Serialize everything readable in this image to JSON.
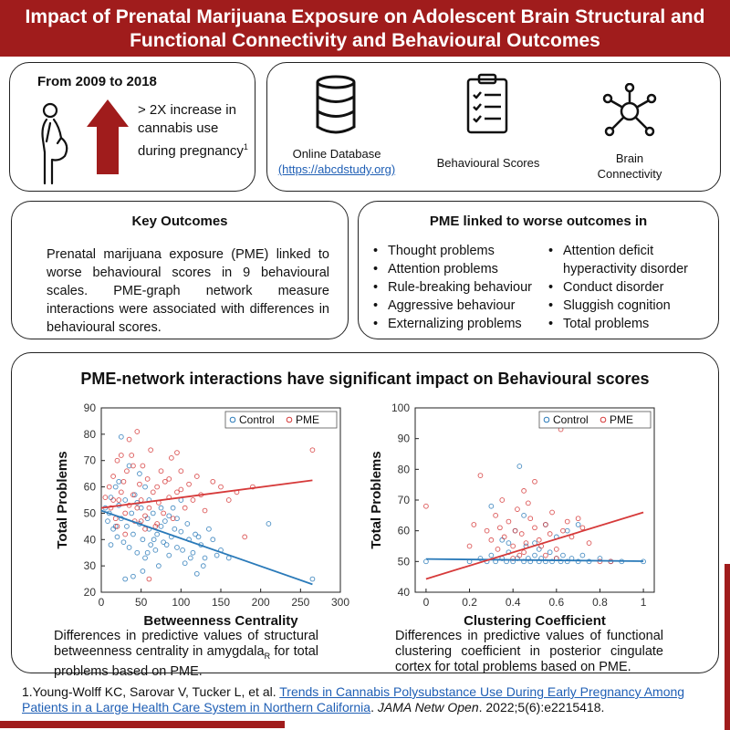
{
  "header": {
    "title": "Impact of Prenatal Marijuana Exposure on Adolescent Brain Structural and Functional Connectivity and Behavioural Outcomes"
  },
  "trend": {
    "years": "From 2009 to 2018",
    "stat_prefix": "> 2X increase in cannabis use during pregnancy",
    "footnote_mark": "1"
  },
  "sources": {
    "database_label": "Online Database",
    "database_link": "(https://abcdstudy.org)",
    "behaviour_label": "Behavioural Scores",
    "brain_label": "Brain Connectivity"
  },
  "key_outcomes": {
    "title": "Key Outcomes",
    "text": "Prenatal marijuana exposure (PME) linked to worse behavioural scores in 9 behavioural scales. PME-graph network measure interactions were associated with differences in behavioural scores."
  },
  "pme_linked": {
    "title": "PME linked to worse outcomes in",
    "col1": [
      "Thought problems",
      "Attention problems",
      "Rule-breaking behaviour",
      "Aggressive behaviour",
      "Externalizing problems"
    ],
    "col2": [
      "Attention deficit hyperactivity disorder",
      "Conduct disorder",
      "Sluggish cognition",
      "Total problems"
    ]
  },
  "interactions": {
    "title": "PME-network interactions have significant impact on Behavioural scores"
  },
  "captions": {
    "left": "Differences in predictive values of structural betweenness centrality in amygdala",
    "left_sub": "R",
    "left_tail": " for total problems based on PME.",
    "right": "Differences in predictive values of functional clustering coefficient in posterior cingulate cortex for total problems based on PME."
  },
  "reference": {
    "prefix": "1.Young-Wolff KC, Sarovar V, Tucker L, et al. ",
    "link": "Trends in Cannabis Polysubstance Use During Early Pregnancy Among Patients in a Large Health Care System in Northern California",
    "journal": "JAMA Netw Open",
    "tail": ". 2022;5(6):e2215418."
  },
  "colors": {
    "brand": "#a01c1c",
    "control": "#2a7ab9",
    "pme": "#d63a3a"
  },
  "chart_data": [
    {
      "type": "scatter",
      "title": "",
      "xlabel": "Betweenness Centrality",
      "ylabel": "Total Problems",
      "xlim": [
        0,
        300
      ],
      "ylim": [
        20,
        90
      ],
      "xticks": [
        0,
        50,
        100,
        150,
        200,
        250,
        300
      ],
      "yticks": [
        20,
        30,
        40,
        50,
        60,
        70,
        80,
        90
      ],
      "legend": "top-right",
      "series": [
        {
          "name": "Control",
          "color": "#2a7ab9",
          "points": [
            [
              5,
              52
            ],
            [
              8,
              47
            ],
            [
              12,
              56
            ],
            [
              15,
              44
            ],
            [
              18,
              60
            ],
            [
              20,
              41
            ],
            [
              22,
              53
            ],
            [
              25,
              48
            ],
            [
              28,
              39
            ],
            [
              30,
              55
            ],
            [
              32,
              45
            ],
            [
              35,
              37
            ],
            [
              38,
              50
            ],
            [
              40,
              42
            ],
            [
              42,
              57
            ],
            [
              45,
              35
            ],
            [
              48,
              46
            ],
            [
              50,
              52
            ],
            [
              52,
              40
            ],
            [
              55,
              33
            ],
            [
              58,
              48
            ],
            [
              60,
              44
            ],
            [
              62,
              38
            ],
            [
              65,
              50
            ],
            [
              68,
              36
            ],
            [
              70,
              42
            ],
            [
              72,
              30
            ],
            [
              75,
              45
            ],
            [
              78,
              39
            ],
            [
              80,
              47
            ],
            [
              85,
              34
            ],
            [
              88,
              41
            ],
            [
              90,
              52
            ],
            [
              95,
              37
            ],
            [
              100,
              43
            ],
            [
              105,
              31
            ],
            [
              110,
              40
            ],
            [
              115,
              35
            ],
            [
              120,
              27
            ],
            [
              125,
              38
            ],
            [
              130,
              33
            ],
            [
              140,
              40
            ],
            [
              150,
              36
            ],
            [
              160,
              33
            ],
            [
              210,
              46
            ],
            [
              265,
              25
            ],
            [
              30,
              25
            ],
            [
              40,
              26
            ],
            [
              25,
              79
            ],
            [
              48,
              65
            ],
            [
              35,
              68
            ],
            [
              22,
              62
            ],
            [
              18,
              45
            ],
            [
              12,
              38
            ],
            [
              10,
              50
            ],
            [
              45,
              54
            ],
            [
              55,
              60
            ],
            [
              60,
              55
            ],
            [
              75,
              52
            ],
            [
              85,
              49
            ],
            [
              95,
              48
            ],
            [
              100,
              55
            ],
            [
              108,
              46
            ],
            [
              118,
              42
            ],
            [
              128,
              30
            ],
            [
              135,
              44
            ],
            [
              145,
              34
            ],
            [
              52,
              28
            ],
            [
              58,
              35
            ],
            [
              66,
              40
            ],
            [
              82,
              38
            ],
            [
              92,
              44
            ],
            [
              102,
              36
            ],
            [
              112,
              33
            ],
            [
              122,
              41
            ]
          ],
          "fit": [
            [
              0,
              51
            ],
            [
              265,
              23
            ]
          ]
        },
        {
          "name": "PME",
          "color": "#d63a3a",
          "points": [
            [
              5,
              56
            ],
            [
              10,
              60
            ],
            [
              12,
              52
            ],
            [
              15,
              64
            ],
            [
              18,
              48
            ],
            [
              20,
              70
            ],
            [
              22,
              55
            ],
            [
              25,
              58
            ],
            [
              28,
              62
            ],
            [
              30,
              50
            ],
            [
              32,
              66
            ],
            [
              35,
              53
            ],
            [
              38,
              72
            ],
            [
              40,
              57
            ],
            [
              42,
              47
            ],
            [
              45,
              81
            ],
            [
              48,
              61
            ],
            [
              50,
              55
            ],
            [
              52,
              68
            ],
            [
              55,
              49
            ],
            [
              58,
              63
            ],
            [
              60,
              52
            ],
            [
              62,
              74
            ],
            [
              65,
              58
            ],
            [
              68,
              45
            ],
            [
              70,
              60
            ],
            [
              72,
              54
            ],
            [
              75,
              66
            ],
            [
              78,
              50
            ],
            [
              80,
              62
            ],
            [
              85,
              56
            ],
            [
              88,
              71
            ],
            [
              90,
              48
            ],
            [
              95,
              73
            ],
            [
              100,
              59
            ],
            [
              105,
              52
            ],
            [
              110,
              61
            ],
            [
              115,
              55
            ],
            [
              120,
              64
            ],
            [
              125,
              57
            ],
            [
              130,
              51
            ],
            [
              140,
              62
            ],
            [
              150,
              60
            ],
            [
              160,
              55
            ],
            [
              170,
              58
            ],
            [
              180,
              41
            ],
            [
              190,
              60
            ],
            [
              265,
              74
            ],
            [
              60,
              25
            ],
            [
              20,
              45
            ],
            [
              30,
              42
            ],
            [
              15,
              55
            ],
            [
              25,
              72
            ],
            [
              35,
              78
            ],
            [
              40,
              68
            ],
            [
              55,
              44
            ],
            [
              70,
              46
            ],
            [
              85,
              63
            ],
            [
              95,
              58
            ],
            [
              100,
              66
            ],
            [
              45,
              52
            ],
            [
              50,
              47
            ]
          ],
          "fit": [
            [
              0,
              52
            ],
            [
              265,
              62.5
            ]
          ]
        }
      ]
    },
    {
      "type": "scatter",
      "title": "",
      "xlabel": "Clustering Coefficient",
      "ylabel": "Total Problems",
      "xlim": [
        -0.05,
        1.05
      ],
      "ylim": [
        40,
        100
      ],
      "xticks": [
        0,
        0.2,
        0.4,
        0.6,
        0.8,
        1
      ],
      "yticks": [
        40,
        50,
        60,
        70,
        80,
        90,
        100
      ],
      "legend": "top-right",
      "series": [
        {
          "name": "Control",
          "color": "#2a7ab9",
          "points": [
            [
              0,
              50
            ],
            [
              0.2,
              50
            ],
            [
              0.25,
              51
            ],
            [
              0.28,
              50
            ],
            [
              0.3,
              52
            ],
            [
              0.32,
              50
            ],
            [
              0.35,
              51
            ],
            [
              0.37,
              50
            ],
            [
              0.38,
              53
            ],
            [
              0.4,
              50
            ],
            [
              0.42,
              51
            ],
            [
              0.43,
              81
            ],
            [
              0.45,
              50
            ],
            [
              0.46,
              55
            ],
            [
              0.47,
              51
            ],
            [
              0.48,
              50
            ],
            [
              0.5,
              52
            ],
            [
              0.52,
              50
            ],
            [
              0.53,
              51
            ],
            [
              0.55,
              50
            ],
            [
              0.57,
              53
            ],
            [
              0.58,
              50
            ],
            [
              0.6,
              51
            ],
            [
              0.62,
              50
            ],
            [
              0.63,
              52
            ],
            [
              0.65,
              50
            ],
            [
              0.67,
              51
            ],
            [
              0.7,
              50
            ],
            [
              0.72,
              52
            ],
            [
              0.75,
              50
            ],
            [
              0.8,
              51
            ],
            [
              0.85,
              50
            ],
            [
              0.9,
              50
            ],
            [
              1,
              50
            ],
            [
              0.3,
              68
            ],
            [
              0.41,
              60
            ],
            [
              0.5,
              56
            ],
            [
              0.55,
              62
            ],
            [
              0.65,
              60
            ],
            [
              0.7,
              62
            ],
            [
              0.45,
              65
            ],
            [
              0.35,
              57
            ],
            [
              0.6,
              58
            ],
            [
              0.52,
              54
            ],
            [
              0.38,
              56
            ]
          ],
          "fit": [
            [
              0,
              50.8
            ],
            [
              1,
              50.1
            ]
          ]
        },
        {
          "name": "PME",
          "color": "#d63a3a",
          "points": [
            [
              0,
              68
            ],
            [
              0.2,
              55
            ],
            [
              0.22,
              62
            ],
            [
              0.25,
              78
            ],
            [
              0.28,
              60
            ],
            [
              0.3,
              57
            ],
            [
              0.32,
              65
            ],
            [
              0.33,
              54
            ],
            [
              0.35,
              70
            ],
            [
              0.36,
              58
            ],
            [
              0.38,
              63
            ],
            [
              0.4,
              55
            ],
            [
              0.41,
              60
            ],
            [
              0.42,
              67
            ],
            [
              0.43,
              52
            ],
            [
              0.44,
              59
            ],
            [
              0.45,
              73
            ],
            [
              0.46,
              56
            ],
            [
              0.48,
              64
            ],
            [
              0.5,
              61
            ],
            [
              0.5,
              76
            ],
            [
              0.52,
              57
            ],
            [
              0.53,
              55
            ],
            [
              0.55,
              62
            ],
            [
              0.57,
              59
            ],
            [
              0.58,
              66
            ],
            [
              0.6,
              54
            ],
            [
              0.62,
              93
            ],
            [
              0.63,
              60
            ],
            [
              0.65,
              63
            ],
            [
              0.67,
              58
            ],
            [
              0.7,
              64
            ],
            [
              0.72,
              61
            ],
            [
              0.75,
              56
            ],
            [
              0.8,
              50
            ],
            [
              0.85,
              50
            ],
            [
              0.4,
              51
            ],
            [
              0.45,
              53
            ],
            [
              0.55,
              52
            ],
            [
              0.6,
              51
            ],
            [
              0.34,
              61
            ],
            [
              0.47,
              69
            ]
          ],
          "fit": [
            [
              0,
              44.3
            ],
            [
              1,
              66
            ]
          ]
        }
      ]
    }
  ]
}
